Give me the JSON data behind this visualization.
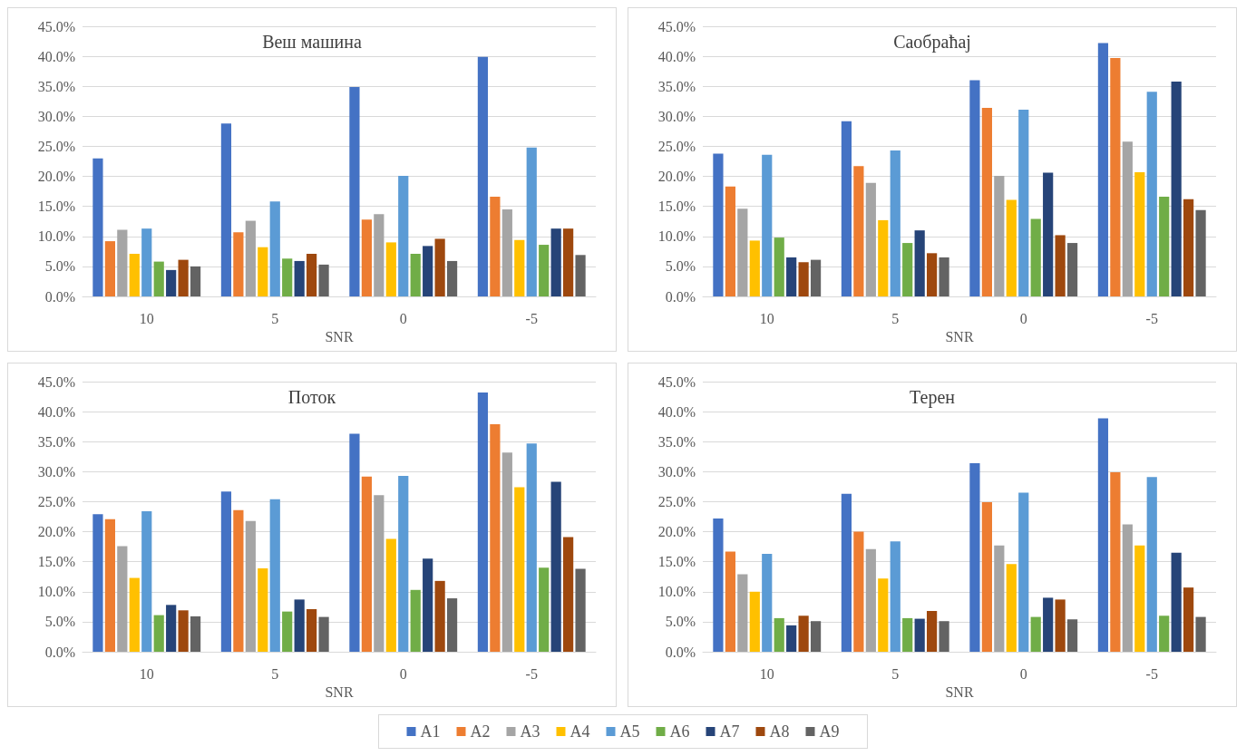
{
  "chart_data": [
    {
      "type": "bar",
      "title": "Веш машина",
      "xlabel": "SNR",
      "categories": [
        "10",
        "5",
        "0",
        "-5"
      ],
      "ylim": [
        0,
        45
      ],
      "yticks": [
        {
          "value": 0,
          "label": "0.0%"
        },
        {
          "value": 5,
          "label": "5.0%"
        },
        {
          "value": 10,
          "label": "10.0%"
        },
        {
          "value": 15,
          "label": "15.0%"
        },
        {
          "value": 20,
          "label": "20.0%"
        },
        {
          "value": 25,
          "label": "25.0%"
        },
        {
          "value": 30,
          "label": "30.0%"
        },
        {
          "value": 35,
          "label": "35.0%"
        },
        {
          "value": 40,
          "label": "40.0%"
        },
        {
          "value": 45,
          "label": "45.0%"
        }
      ],
      "grid": "y",
      "legend": "bottom",
      "series": [
        {
          "name": "A1",
          "color": "#4472c4",
          "values": [
            23.0,
            28.8,
            34.9,
            39.9
          ]
        },
        {
          "name": "A2",
          "color": "#ed7d31",
          "values": [
            9.2,
            10.7,
            12.8,
            16.6
          ]
        },
        {
          "name": "A3",
          "color": "#a5a5a5",
          "values": [
            11.1,
            12.6,
            13.7,
            14.5
          ]
        },
        {
          "name": "A4",
          "color": "#ffc000",
          "values": [
            7.1,
            8.2,
            9.0,
            9.4
          ]
        },
        {
          "name": "A5",
          "color": "#5b9bd5",
          "values": [
            11.3,
            15.8,
            20.1,
            24.8
          ]
        },
        {
          "name": "A6",
          "color": "#70ad47",
          "values": [
            5.8,
            6.3,
            7.1,
            8.6
          ]
        },
        {
          "name": "A7",
          "color": "#264478",
          "values": [
            4.4,
            5.9,
            8.4,
            11.3
          ]
        },
        {
          "name": "A8",
          "color": "#9e480e",
          "values": [
            6.1,
            7.1,
            9.6,
            11.3
          ]
        },
        {
          "name": "A9",
          "color": "#636363",
          "values": [
            5.0,
            5.3,
            5.9,
            6.9
          ]
        }
      ]
    },
    {
      "type": "bar",
      "title": "Саобраћај",
      "xlabel": "SNR",
      "categories": [
        "10",
        "5",
        "0",
        "-5"
      ],
      "ylim": [
        0,
        45
      ],
      "yticks": [
        {
          "value": 0,
          "label": "0.0%"
        },
        {
          "value": 5,
          "label": "5.0%"
        },
        {
          "value": 10,
          "label": "10.0%"
        },
        {
          "value": 15,
          "label": "15.0%"
        },
        {
          "value": 20,
          "label": "20.0%"
        },
        {
          "value": 25,
          "label": "25.0%"
        },
        {
          "value": 30,
          "label": "30.0%"
        },
        {
          "value": 35,
          "label": "35.0%"
        },
        {
          "value": 40,
          "label": "40.0%"
        },
        {
          "value": 45,
          "label": "45.0%"
        }
      ],
      "grid": "y",
      "series": [
        {
          "color": "#4472c4",
          "values": [
            23.8,
            29.2,
            36.0,
            42.2
          ]
        },
        {
          "color": "#ed7d31",
          "values": [
            18.3,
            21.7,
            31.4,
            39.7
          ]
        },
        {
          "color": "#a5a5a5",
          "values": [
            14.6,
            18.9,
            20.1,
            25.8
          ]
        },
        {
          "color": "#ffc000",
          "values": [
            9.3,
            12.7,
            16.1,
            20.7
          ]
        },
        {
          "color": "#5b9bd5",
          "values": [
            23.6,
            24.3,
            31.1,
            34.1
          ]
        },
        {
          "color": "#70ad47",
          "values": [
            9.8,
            8.9,
            12.9,
            16.6
          ]
        },
        {
          "color": "#264478",
          "values": [
            6.5,
            11.0,
            20.6,
            35.8
          ]
        },
        {
          "color": "#9e480e",
          "values": [
            5.7,
            7.2,
            10.2,
            16.2
          ]
        },
        {
          "color": "#636363",
          "values": [
            6.1,
            6.5,
            8.9,
            14.4
          ]
        }
      ]
    },
    {
      "type": "bar",
      "title": "Поток",
      "xlabel": "SNR",
      "categories": [
        "10",
        "5",
        "0",
        "-5"
      ],
      "ylim": [
        0,
        45
      ],
      "yticks": [
        {
          "value": 0,
          "label": "0.0%"
        },
        {
          "value": 5,
          "label": "5.0%"
        },
        {
          "value": 10,
          "label": "10.0%"
        },
        {
          "value": 15,
          "label": "15.0%"
        },
        {
          "value": 20,
          "label": "20.0%"
        },
        {
          "value": 25,
          "label": "25.0%"
        },
        {
          "value": 30,
          "label": "30.0%"
        },
        {
          "value": 35,
          "label": "35.0%"
        },
        {
          "value": 40,
          "label": "40.0%"
        },
        {
          "value": 45,
          "label": "45.0%"
        }
      ],
      "grid": "y",
      "series": [
        {
          "color": "#4472c4",
          "values": [
            22.9,
            26.7,
            36.3,
            43.2
          ]
        },
        {
          "color": "#ed7d31",
          "values": [
            22.1,
            23.6,
            29.2,
            37.9
          ]
        },
        {
          "color": "#a5a5a5",
          "values": [
            17.6,
            21.8,
            26.1,
            33.2
          ]
        },
        {
          "color": "#ffc000",
          "values": [
            12.3,
            13.9,
            18.8,
            27.4
          ]
        },
        {
          "color": "#5b9bd5",
          "values": [
            23.4,
            25.4,
            29.3,
            34.7
          ]
        },
        {
          "color": "#70ad47",
          "values": [
            6.1,
            6.7,
            10.3,
            14.0
          ]
        },
        {
          "color": "#264478",
          "values": [
            7.8,
            8.7,
            15.5,
            28.3
          ]
        },
        {
          "color": "#9e480e",
          "values": [
            6.9,
            7.1,
            11.8,
            19.1
          ]
        },
        {
          "color": "#636363",
          "values": [
            5.9,
            5.8,
            8.9,
            13.8
          ]
        }
      ]
    },
    {
      "type": "bar",
      "title": "Терен",
      "xlabel": "SNR",
      "categories": [
        "10",
        "5",
        "0",
        "-5"
      ],
      "ylim": [
        0,
        45
      ],
      "yticks": [
        {
          "value": 0,
          "label": "0.0%"
        },
        {
          "value": 5,
          "label": "5.0%"
        },
        {
          "value": 10,
          "label": "10.0%"
        },
        {
          "value": 15,
          "label": "15.0%"
        },
        {
          "value": 20,
          "label": "20.0%"
        },
        {
          "value": 25,
          "label": "25.0%"
        },
        {
          "value": 30,
          "label": "30.0%"
        },
        {
          "value": 35,
          "label": "35.0%"
        },
        {
          "value": 40,
          "label": "40.0%"
        },
        {
          "value": 45,
          "label": "45.0%"
        }
      ],
      "grid": "y",
      "series": [
        {
          "color": "#4472c4",
          "values": [
            22.2,
            26.3,
            31.4,
            38.9
          ]
        },
        {
          "color": "#ed7d31",
          "values": [
            16.7,
            20.0,
            24.9,
            29.9
          ]
        },
        {
          "color": "#a5a5a5",
          "values": [
            12.9,
            17.1,
            17.7,
            21.2
          ]
        },
        {
          "color": "#ffc000",
          "values": [
            10.0,
            12.2,
            14.6,
            17.7
          ]
        },
        {
          "color": "#5b9bd5",
          "values": [
            16.3,
            18.4,
            26.5,
            29.1
          ]
        },
        {
          "color": "#70ad47",
          "values": [
            5.6,
            5.6,
            5.8,
            6.0
          ]
        },
        {
          "color": "#264478",
          "values": [
            4.4,
            5.5,
            9.0,
            16.5
          ]
        },
        {
          "color": "#9e480e",
          "values": [
            6.0,
            6.8,
            8.7,
            10.7
          ]
        },
        {
          "color": "#636363",
          "values": [
            5.1,
            5.1,
            5.4,
            5.8
          ]
        }
      ]
    }
  ]
}
